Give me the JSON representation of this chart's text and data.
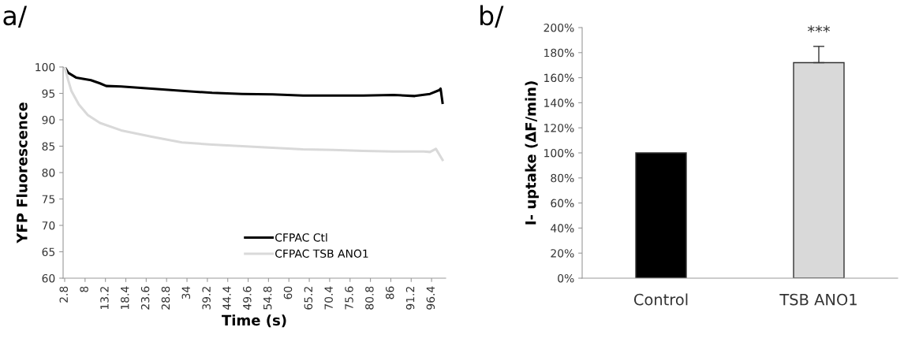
{
  "chart_data": [
    {
      "type": "line",
      "title": "a/",
      "xlabel": "Time (s)",
      "ylabel": "YFP Fluorescence",
      "xlim": [
        2.4,
        100
      ],
      "xticks": [
        2.8,
        8,
        13.2,
        18.4,
        23.6,
        28.8,
        34,
        39.2,
        44.4,
        49.6,
        54.8,
        60,
        65.2,
        70.4,
        75.6,
        80.8,
        86,
        91.2,
        96.4
      ],
      "ylim": [
        60,
        100
      ],
      "yticks": [
        60,
        65,
        70,
        75,
        80,
        85,
        90,
        95,
        100
      ],
      "grid": false,
      "legend": "bottom",
      "marker": "none",
      "line_style": "solid",
      "series": [
        {
          "name": "CFPAC Ctl",
          "color": "#000000",
          "x": [
            2.8,
            3.7,
            5.7,
            9.5,
            11.8,
            13.4,
            17.2,
            25.0,
            32.7,
            40.4,
            48.1,
            55.8,
            63.6,
            71.3,
            79.0,
            86.7,
            92.1,
            96.0,
            98.3,
            98.7,
            99.2
          ],
          "values": [
            100,
            98.9,
            98.0,
            97.5,
            96.9,
            96.4,
            96.3,
            95.9,
            95.5,
            95.1,
            94.9,
            94.8,
            94.6,
            94.6,
            94.6,
            94.7,
            94.5,
            94.9,
            95.6,
            95.9,
            93.2
          ]
        },
        {
          "name": "CFPAC TSB ANO1",
          "color": "#d9d9d9",
          "x": [
            2.8,
            3.7,
            4.5,
            6.4,
            8.7,
            11.8,
            17.2,
            25.0,
            32.7,
            40.4,
            48.1,
            55.8,
            63.6,
            71.3,
            79.0,
            86.7,
            94.4,
            96.0,
            97.5,
            99.2
          ],
          "values": [
            100,
            97.5,
            95.5,
            92.9,
            90.9,
            89.4,
            88.0,
            86.8,
            85.7,
            85.3,
            85.0,
            84.7,
            84.4,
            84.3,
            84.1,
            84.0,
            84.0,
            83.9,
            84.5,
            82.4
          ]
        }
      ]
    },
    {
      "type": "bar",
      "title": "b/",
      "ylabel": "I- uptake (ΔF/min)",
      "categories": [
        "Control",
        "TSB ANO1"
      ],
      "values": [
        100,
        172
      ],
      "colors": [
        "#000000",
        "#d9d9d9"
      ],
      "errors": [
        null,
        13
      ],
      "ylim": [
        0,
        200
      ],
      "yticks": [
        {
          "value": 0,
          "label": "0%"
        },
        {
          "value": 20,
          "label": "20%"
        },
        {
          "value": 40,
          "label": "40%"
        },
        {
          "value": 60,
          "label": "60%"
        },
        {
          "value": 80,
          "label": "80%"
        },
        {
          "value": 100,
          "label": "100%"
        },
        {
          "value": 120,
          "label": "120%"
        },
        {
          "value": 140,
          "label": "140%"
        },
        {
          "value": 160,
          "label": "160%"
        },
        {
          "value": 180,
          "label": "180%"
        },
        {
          "value": 200,
          "label": "200%"
        }
      ],
      "grid": false,
      "annotations": [
        "***"
      ]
    }
  ]
}
